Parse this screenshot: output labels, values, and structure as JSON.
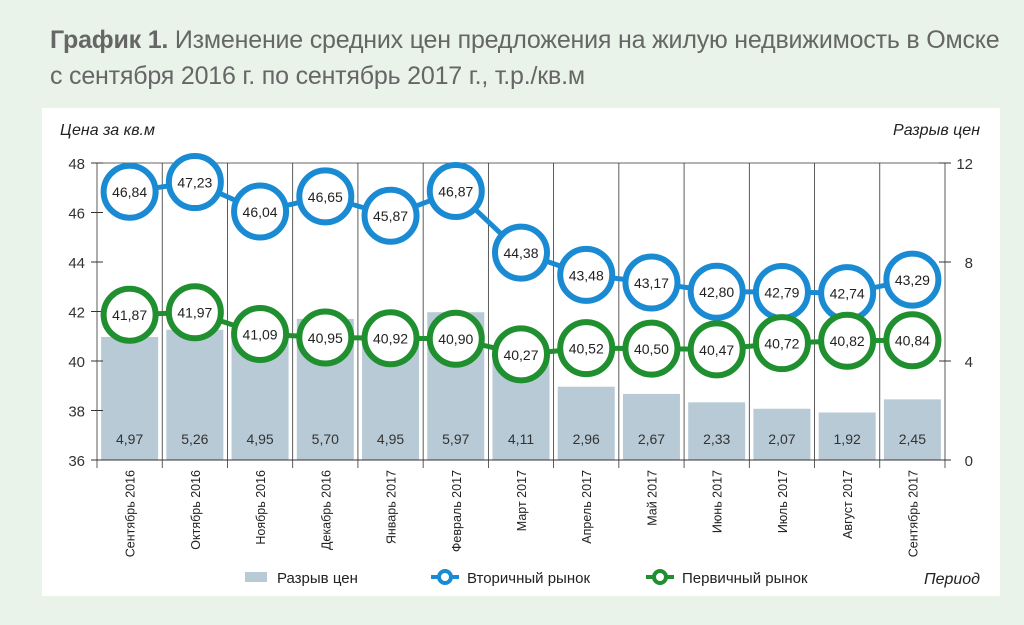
{
  "title_bold": "График 1.",
  "title_text": "Изменение средних цен предложения на жилую недвижимость в Омске с сентября 2016 г. по сентябрь 2017 г., т.р./кв.м",
  "chart_data": {
    "type": "bar+line",
    "ylabel_left": "Цена за кв.м",
    "ylabel_right": "Разрыв цен",
    "xlabel": "Период",
    "ylim_left": [
      36,
      48
    ],
    "yticks_left": [
      "36",
      "38",
      "40",
      "42",
      "44",
      "46",
      "48"
    ],
    "ylim_right": [
      0,
      12
    ],
    "yticks_right": [
      "0",
      "4",
      "8",
      "12"
    ],
    "grid": "vertical",
    "legend_position": "bottom",
    "categories": [
      "Сентябрь 2016",
      "Октябрь 2016",
      "Ноябрь 2016",
      "Декабрь 2016",
      "Январь 2017",
      "Февраль 2017",
      "Март 2017",
      "Апрель 2017",
      "Май 2017",
      "Июнь 2017",
      "Июль 2017",
      "Август 2017",
      "Сентябрь 2017"
    ],
    "series": [
      {
        "name": "Разрыв цен",
        "type": "bar",
        "axis": "right",
        "color": "#b7cad6",
        "values": [
          4.97,
          5.26,
          4.95,
          5.7,
          4.95,
          5.97,
          4.11,
          2.96,
          2.67,
          2.33,
          2.07,
          1.92,
          2.45
        ],
        "labels": [
          "4,97",
          "5,26",
          "4,95",
          "5,70",
          "4,95",
          "5,97",
          "4,11",
          "2,96",
          "2,67",
          "2,33",
          "2,07",
          "1,92",
          "2,45"
        ]
      },
      {
        "name": "Вторичный рынок",
        "type": "line",
        "axis": "left",
        "color": "#1a8bd3",
        "values": [
          46.84,
          47.23,
          46.04,
          46.65,
          45.87,
          46.87,
          44.38,
          43.48,
          43.17,
          42.8,
          42.79,
          42.74,
          43.29
        ],
        "labels": [
          "46,84",
          "47,23",
          "46,04",
          "46,65",
          "45,87",
          "46,87",
          "44,38",
          "43,48",
          "43,17",
          "42,80",
          "42,79",
          "42,74",
          "43,29"
        ]
      },
      {
        "name": "Первичный рынок",
        "type": "line",
        "axis": "left",
        "color": "#1f8f2f",
        "values": [
          41.87,
          41.97,
          41.09,
          40.95,
          40.92,
          40.9,
          40.27,
          40.52,
          40.5,
          40.47,
          40.72,
          40.82,
          40.84
        ],
        "labels": [
          "41,87",
          "41,97",
          "41,09",
          "40,95",
          "40,92",
          "40,90",
          "40,27",
          "40,52",
          "40,50",
          "40,47",
          "40,72",
          "40,82",
          "40,84"
        ]
      }
    ]
  }
}
